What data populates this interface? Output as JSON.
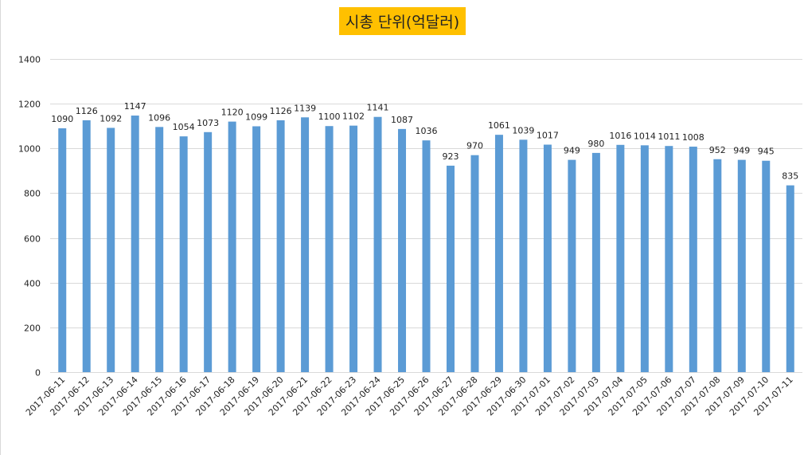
{
  "chart_data": {
    "type": "bar",
    "title": "시총 단위(억달러)",
    "xlabel": "",
    "ylabel": "",
    "ylim": [
      0,
      1400
    ],
    "yticks": [
      0,
      200,
      400,
      600,
      800,
      1000,
      1200,
      1400
    ],
    "grid": true,
    "legend": "none",
    "categories": [
      "2017-06-11",
      "2017-06-12",
      "2017-06-13",
      "2017-06-14",
      "2017-06-15",
      "2017-06-16",
      "2017-06-17",
      "2017-06-18",
      "2017-06-19",
      "2017-06-20",
      "2017-06-21",
      "2017-06-22",
      "2017-06-23",
      "2017-06-24",
      "2017-06-25",
      "2017-06-26",
      "2017-06-27",
      "2017-06-28",
      "2017-06-29",
      "2017-06-30",
      "2017-07-01",
      "2017-07-02",
      "2017-07-03",
      "2017-07-04",
      "2017-07-05",
      "2017-07-06",
      "2017-07-07",
      "2017-07-08",
      "2017-07-09",
      "2017-07-10",
      "2017-07-11"
    ],
    "values": [
      1090,
      1126,
      1092,
      1147,
      1096,
      1054,
      1073,
      1120,
      1099,
      1126,
      1139,
      1100,
      1102,
      1141,
      1087,
      1036,
      923,
      970,
      1061,
      1039,
      1017,
      949,
      980,
      1016,
      1014,
      1011,
      1008,
      952,
      949,
      945,
      835
    ],
    "colors": {
      "bar": "#5b9bd5",
      "grid": "#d9d9d9",
      "text": "#222222",
      "title_bg": "#ffc000"
    }
  }
}
